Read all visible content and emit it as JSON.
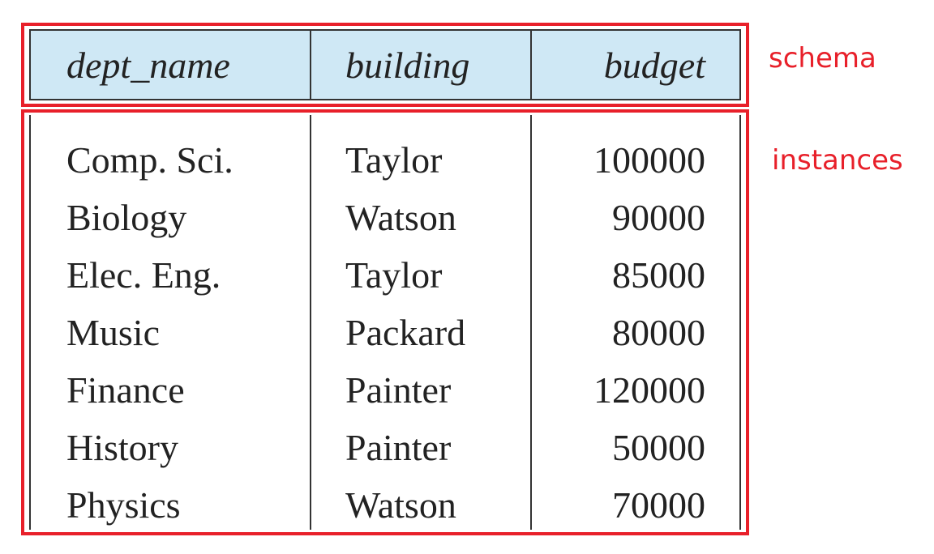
{
  "table": {
    "columns": [
      "dept_name",
      "building",
      "budget"
    ],
    "rows": [
      [
        "Comp. Sci.",
        "Taylor",
        "100000"
      ],
      [
        "Biology",
        "Watson",
        "90000"
      ],
      [
        "Elec. Eng.",
        "Taylor",
        "85000"
      ],
      [
        "Music",
        "Packard",
        "80000"
      ],
      [
        "Finance",
        "Painter",
        "120000"
      ],
      [
        "History",
        "Painter",
        "50000"
      ],
      [
        "Physics",
        "Watson",
        "70000"
      ]
    ]
  },
  "annotations": {
    "schema_label": "schema",
    "instances_label": "instances",
    "highlight_color": "#e8202a",
    "header_color": "#cfe8f5"
  }
}
